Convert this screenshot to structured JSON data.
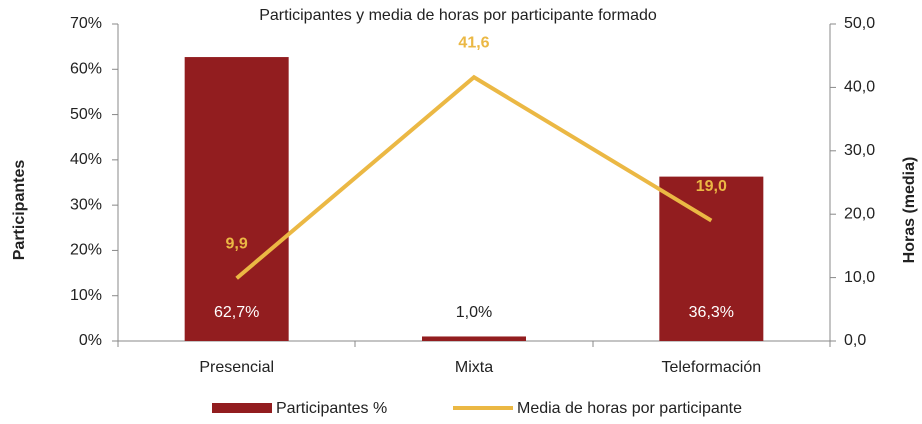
{
  "chart_data": {
    "type": "bar",
    "title": "Participantes y media de horas por participante formado",
    "categories": [
      "Presencial",
      "Mixta",
      "Teleformación"
    ],
    "series": [
      {
        "name": "Participantes %",
        "type": "bar",
        "color": "#921d1f",
        "values": [
          62.7,
          1.0,
          36.3
        ],
        "value_labels": [
          "62,7%",
          "1,0%",
          "36,3%"
        ]
      },
      {
        "name": "Media de horas por participante",
        "type": "line",
        "axis": "y2",
        "color": "#ebb844",
        "values": [
          9.9,
          41.6,
          19.0
        ],
        "value_labels": [
          "9,9",
          "41,6",
          "19,0"
        ]
      }
    ],
    "ylabel": "Participantes",
    "y2label": "Horas (media)",
    "ylim": [
      0,
      70
    ],
    "yticks": [
      {
        "value": 0,
        "label": "0%"
      },
      {
        "value": 10,
        "label": "10%"
      },
      {
        "value": 20,
        "label": "20%"
      },
      {
        "value": 30,
        "label": "30%"
      },
      {
        "value": 40,
        "label": "40%"
      },
      {
        "value": 50,
        "label": "50%"
      },
      {
        "value": 60,
        "label": "60%"
      },
      {
        "value": 70,
        "label": "70%"
      }
    ],
    "y2lim": [
      0,
      50
    ],
    "y2ticks": [
      {
        "value": 0,
        "label": "0,0"
      },
      {
        "value": 10,
        "label": "10,0"
      },
      {
        "value": 20,
        "label": "20,0"
      },
      {
        "value": 30,
        "label": "30,0"
      },
      {
        "value": 40,
        "label": "40,0"
      },
      {
        "value": 50,
        "label": "50,0"
      }
    ],
    "legend": "bottom"
  }
}
